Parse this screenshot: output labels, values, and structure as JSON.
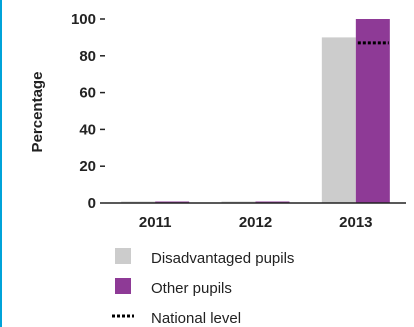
{
  "chart_data": {
    "type": "bar",
    "ylabel": "Percentage",
    "ylim": [
      0,
      100
    ],
    "yticks": [
      0,
      20,
      40,
      60,
      80,
      100
    ],
    "categories": [
      "2011",
      "2012",
      "2013"
    ],
    "series": [
      {
        "name": "Disadvantaged pupils",
        "color": "#cccccc",
        "values": [
          0,
          0,
          90
        ]
      },
      {
        "name": "Other pupils",
        "color": "#8e3a96",
        "values": [
          0,
          0,
          100
        ]
      }
    ],
    "reference": {
      "name": "National level",
      "values": [
        null,
        null,
        87
      ],
      "style": "dotted",
      "color": "#000000"
    },
    "legend": [
      "Disadvantaged pupils",
      "Other pupils",
      "National level"
    ],
    "legend_position": "bottom",
    "grid": false
  }
}
